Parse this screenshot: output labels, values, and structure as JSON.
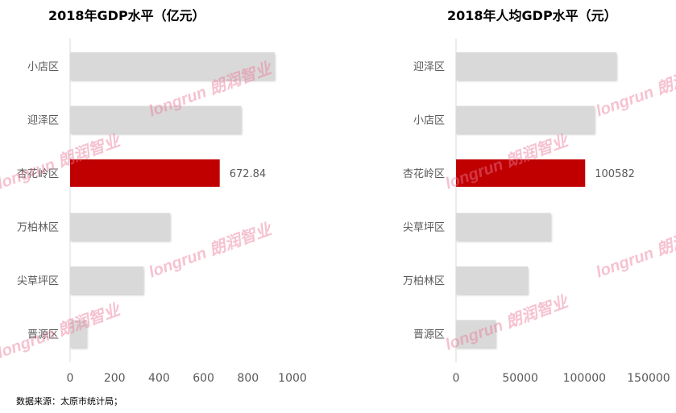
{
  "footer": "数据来源：太原市统计局；",
  "watermark": "longrun 朗润智业",
  "colors": {
    "bar": "#d9d9d9",
    "highlight": "#c00000",
    "axis": "#d9d9d9",
    "text": "#595959"
  },
  "chart_data": [
    {
      "type": "bar",
      "orientation": "horizontal",
      "title": "2018年GDP水平（亿元）",
      "categories": [
        "小店区",
        "迎泽区",
        "杏花岭区",
        "万柏林区",
        "尖草坪区",
        "晋源区"
      ],
      "values": [
        920,
        770,
        672.84,
        450,
        330,
        75
      ],
      "highlight_index": 2,
      "data_label": "672.84",
      "xlim": [
        0,
        1000
      ],
      "ticks": [
        0,
        200,
        400,
        600,
        800,
        1000
      ],
      "tick_labels": [
        "0",
        "200",
        "400",
        "600",
        "800",
        "1000"
      ]
    },
    {
      "type": "bar",
      "orientation": "horizontal",
      "title": "2018年人均GDP水平（元）",
      "categories": [
        "迎泽区",
        "小店区",
        "杏花岭区",
        "尖草坪区",
        "万柏林区",
        "晋源区"
      ],
      "values": [
        125000,
        108000,
        100582,
        74000,
        56000,
        31000
      ],
      "highlight_index": 2,
      "data_label": "100582",
      "xlim": [
        0,
        150000
      ],
      "ticks": [
        0,
        50000,
        100000,
        150000
      ],
      "tick_labels": [
        "0",
        "50000",
        "100000",
        "150000"
      ]
    }
  ]
}
